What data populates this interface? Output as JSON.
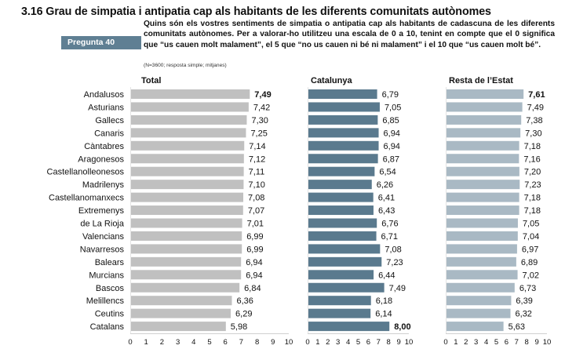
{
  "header": {
    "title": "3.16 Grau de simpatia i antipatia cap als habitants de les diferents comunitats autònomes",
    "badge": "Pregunta  40",
    "question": "Quins són els vostres sentiments de simpatia o antipatia cap als habitants de cadascuna de les diferents comunitats autònomes. Per a valorar-ho utilitzeu una escala de 0 a 10, tenint en compte que el 0 significa que “us cauen molt malament”, el 5 que “no us cauen ni bé ni malament” i el 10 que “us cauen molt bé”.",
    "note": "(N=3600; resposta simple; mitjanes)"
  },
  "chart_data": {
    "type": "bar",
    "orientation": "horizontal",
    "title": "3.16 Grau de simpatia i antipatia cap als habitants de les diferents comunitats autònomes",
    "categories": [
      "Andalusos",
      "Asturians",
      "Gallecs",
      "Canaris",
      "Càntabres",
      "Aragonesos",
      "Castellanolleonesos",
      "Madrilenys",
      "Castellanomanxecs",
      "Extremenys",
      "de La Rioja",
      "Valencians",
      "Navarresos",
      "Balears",
      "Murcians",
      "Bascos",
      "Melillencs",
      "Ceutins",
      "Catalans"
    ],
    "xlim": [
      0,
      10
    ],
    "xticks": [
      "0",
      "1",
      "2",
      "3",
      "4",
      "5",
      "6",
      "7",
      "8",
      "9",
      "10"
    ],
    "grid": false,
    "series": [
      {
        "name": "Total",
        "color": "#c0c0c0",
        "values": [
          7.49,
          7.42,
          7.3,
          7.25,
          7.14,
          7.12,
          7.11,
          7.1,
          7.08,
          7.07,
          7.01,
          6.99,
          6.99,
          6.94,
          6.94,
          6.84,
          6.36,
          6.29,
          5.98
        ],
        "labels": [
          "7,49",
          "7,42",
          "7,30",
          "7,25",
          "7,14",
          "7,12",
          "7,11",
          "7,10",
          "7,08",
          "7,07",
          "7,01",
          "6,99",
          "6,99",
          "6,94",
          "6,94",
          "6,84",
          "6,36",
          "6,29",
          "5,98"
        ],
        "bold_index": 0
      },
      {
        "name": "Catalunya",
        "color": "#5a7a8e",
        "values": [
          6.79,
          7.05,
          6.85,
          6.94,
          6.94,
          6.87,
          6.54,
          6.26,
          6.41,
          6.43,
          6.76,
          6.71,
          7.08,
          7.23,
          6.44,
          7.49,
          6.18,
          6.14,
          8.0
        ],
        "labels": [
          "6,79",
          "7,05",
          "6,85",
          "6,94",
          "6,94",
          "6,87",
          "6,54",
          "6,26",
          "6,41",
          "6,43",
          "6,76",
          "6,71",
          "7,08",
          "7,23",
          "6,44",
          "7,49",
          "6,18",
          "6,14",
          "8,00"
        ],
        "bold_index": 18
      },
      {
        "name": "Resta de l’Estat",
        "color": "#a9b9c4",
        "values": [
          7.61,
          7.49,
          7.38,
          7.3,
          7.18,
          7.16,
          7.2,
          7.23,
          7.18,
          7.18,
          7.05,
          7.04,
          6.97,
          6.89,
          7.02,
          6.73,
          6.39,
          6.32,
          5.63
        ],
        "labels": [
          "7,61",
          "7,49",
          "7,38",
          "7,30",
          "7,18",
          "7,16",
          "7,20",
          "7,23",
          "7,18",
          "7,18",
          "7,05",
          "7,04",
          "6,97",
          "6,89",
          "7,02",
          "6,73",
          "6,39",
          "6,32",
          "5,63"
        ],
        "bold_index": 0
      }
    ]
  }
}
